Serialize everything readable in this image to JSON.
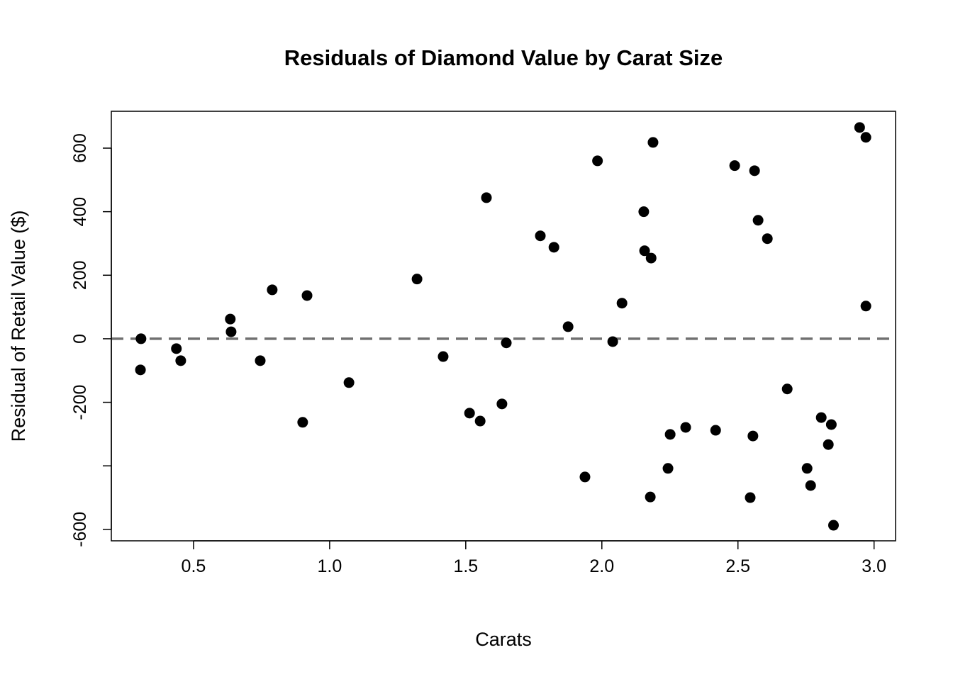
{
  "chart_data": {
    "type": "scatter",
    "title": "Residuals of Diamond Value by Carat Size",
    "xlabel": "Carats",
    "ylabel": "Residual of Retail Value ($)",
    "xlim": [
      0.198,
      3.079
    ],
    "ylim": [
      -636,
      716
    ],
    "x_ticks": [
      0.5,
      1.0,
      1.5,
      2.0,
      2.5,
      3.0
    ],
    "x_tick_labels": [
      "0.5",
      "1.0",
      "1.5",
      "2.0",
      "2.5",
      "3.0"
    ],
    "y_ticks": [
      600,
      400,
      200,
      0,
      -200,
      -400,
      -600
    ],
    "y_tick_labels": [
      "600",
      "400",
      "200",
      "0",
      "-200",
      "",
      "-600"
    ],
    "reference_line": {
      "y": 0,
      "style": "dashed",
      "color": "#707070"
    },
    "grid": false,
    "point_color": "#000000",
    "points": [
      [
        0.307,
        0
      ],
      [
        0.305,
        -98
      ],
      [
        0.437,
        -31
      ],
      [
        0.453,
        -69
      ],
      [
        0.635,
        62
      ],
      [
        0.638,
        22
      ],
      [
        0.745,
        -69
      ],
      [
        0.789,
        154
      ],
      [
        0.901,
        -263
      ],
      [
        0.917,
        136
      ],
      [
        1.071,
        -138
      ],
      [
        1.321,
        188
      ],
      [
        1.417,
        -56
      ],
      [
        1.514,
        -234
      ],
      [
        1.553,
        -259
      ],
      [
        1.576,
        444
      ],
      [
        1.633,
        -205
      ],
      [
        1.649,
        -13
      ],
      [
        1.774,
        324
      ],
      [
        1.824,
        288
      ],
      [
        1.876,
        38
      ],
      [
        1.938,
        -435
      ],
      [
        1.984,
        560
      ],
      [
        2.04,
        -9
      ],
      [
        2.074,
        112
      ],
      [
        2.154,
        400
      ],
      [
        2.157,
        277
      ],
      [
        2.178,
        -498
      ],
      [
        2.181,
        254
      ],
      [
        2.188,
        618
      ],
      [
        2.243,
        -408
      ],
      [
        2.251,
        -301
      ],
      [
        2.308,
        -279
      ],
      [
        2.418,
        -288
      ],
      [
        2.488,
        545
      ],
      [
        2.545,
        -500
      ],
      [
        2.555,
        -306
      ],
      [
        2.561,
        529
      ],
      [
        2.574,
        373
      ],
      [
        2.608,
        315
      ],
      [
        2.681,
        -158
      ],
      [
        2.754,
        -408
      ],
      [
        2.767,
        -462
      ],
      [
        2.806,
        -248
      ],
      [
        2.832,
        -333
      ],
      [
        2.843,
        -270
      ],
      [
        2.851,
        -587
      ],
      [
        2.947,
        665
      ],
      [
        2.97,
        634
      ],
      [
        2.97,
        103
      ]
    ]
  }
}
